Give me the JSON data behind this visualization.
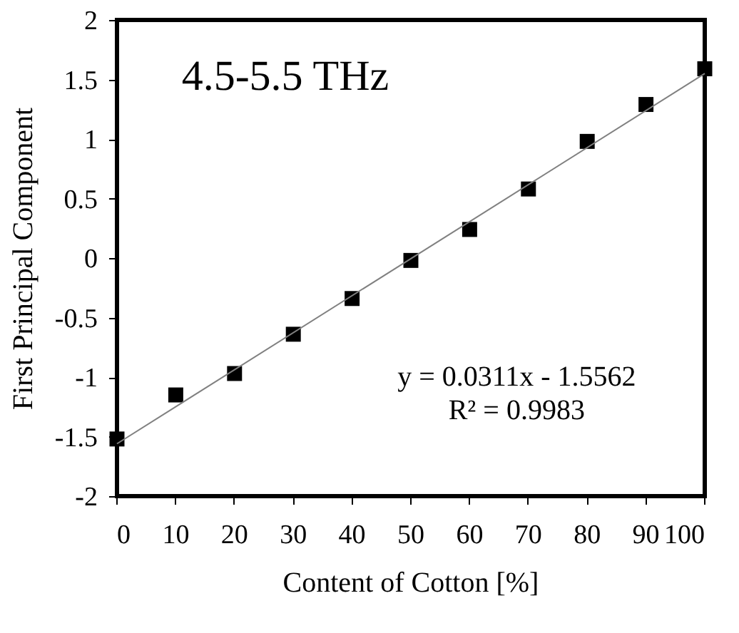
{
  "chart_data": {
    "type": "scatter",
    "xlabel": "Content of Cotton [%]",
    "ylabel": "First Principal Component",
    "x": [
      0,
      10,
      20,
      30,
      40,
      50,
      60,
      70,
      80,
      90,
      100
    ],
    "series": [
      {
        "color": "#000000",
        "marker": "square",
        "values": [
          -1.52,
          -1.15,
          -0.97,
          -0.64,
          -0.34,
          -0.02,
          0.24,
          0.58,
          0.98,
          1.29,
          1.59
        ]
      },
      {
        "type": "line",
        "color": "#808080",
        "x": [
          0,
          100
        ],
        "values": [
          -1.56,
          1.55
        ]
      }
    ],
    "annotations": [
      "4.5-5.5 THz",
      "y = 0.0311x - 1.5562",
      "R² = 0.9983"
    ],
    "xlim": [
      0,
      100
    ],
    "xticks": [
      0,
      10,
      20,
      30,
      40,
      50,
      60,
      70,
      80,
      90,
      100
    ],
    "ylim": [
      -2,
      2
    ],
    "yticks": [
      -2,
      -1.5,
      -1,
      -0.5,
      0,
      0.5,
      1,
      1.5,
      2
    ],
    "grid": false
  }
}
